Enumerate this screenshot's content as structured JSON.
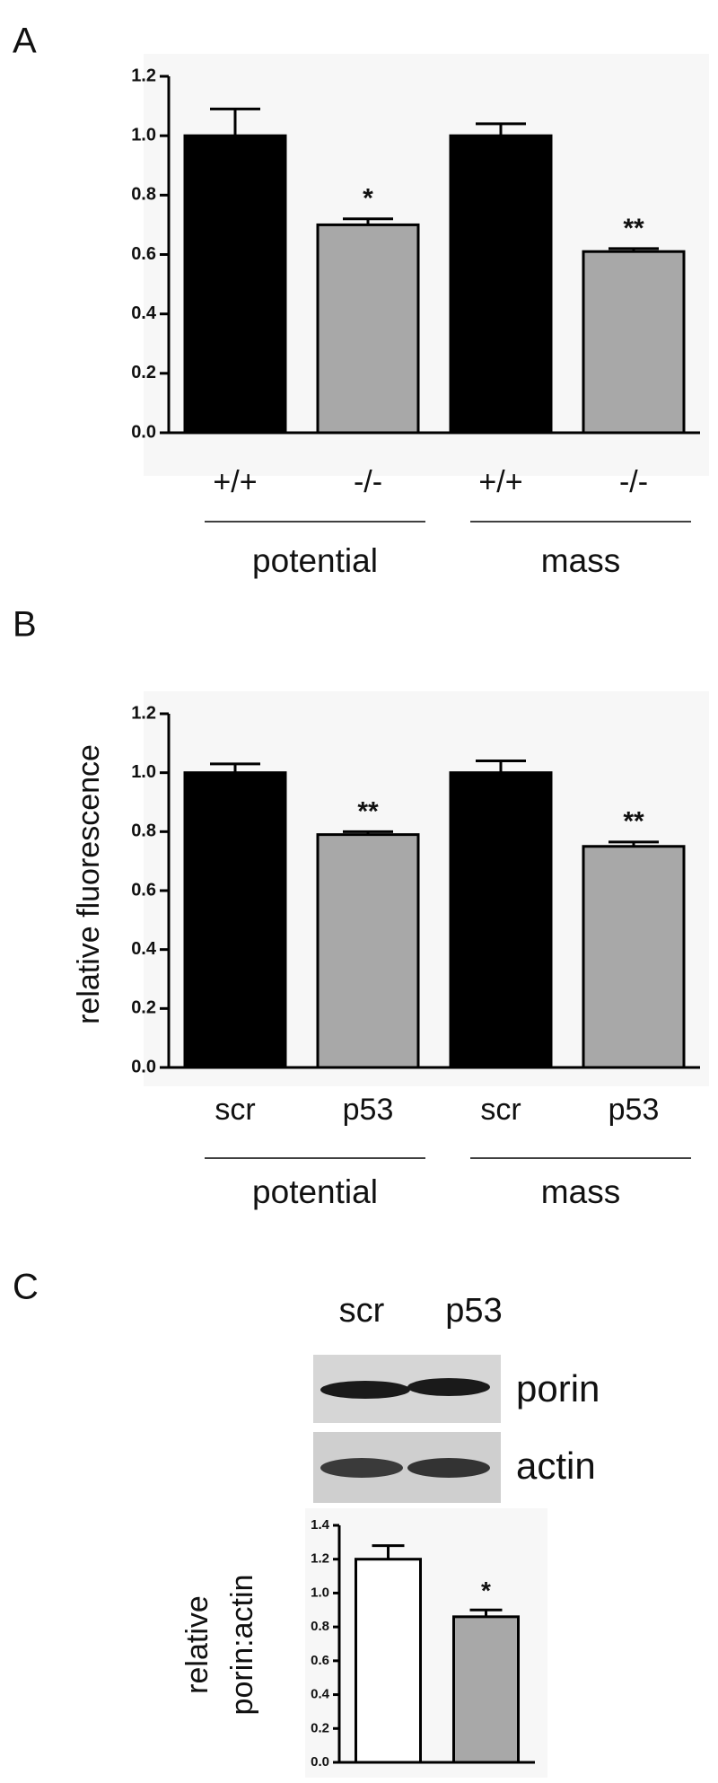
{
  "panel_labels": [
    "A",
    "B",
    "C"
  ],
  "blot": {
    "lanes": [
      "scr",
      "p53"
    ],
    "rows": [
      "porin",
      "actin"
    ]
  },
  "chart_data": [
    {
      "type": "bar",
      "categories": [
        "+/+",
        "-/-",
        "+/+",
        "-/-"
      ],
      "groups": [
        "potential",
        "mass"
      ],
      "values": [
        1.0,
        0.7,
        1.0,
        0.61
      ],
      "errors": [
        0.09,
        0.02,
        0.04,
        0.01
      ],
      "colors": [
        "#000000",
        "#a8a8a8",
        "#000000",
        "#a8a8a8"
      ],
      "annotations": [
        null,
        "*",
        null,
        "**"
      ],
      "ylim": [
        0,
        1.2
      ],
      "yticks": [
        {
          "value": 0,
          "label": "0.0"
        },
        0.2,
        0.4,
        0.6,
        0.8,
        {
          "value": 1,
          "label": "1.0"
        },
        1.2
      ]
    },
    {
      "type": "bar",
      "ylabel": "relative fluorescence",
      "categories": [
        "scr",
        "p53",
        "scr",
        "p53"
      ],
      "groups": [
        "potential",
        "mass"
      ],
      "values": [
        1.0,
        0.79,
        1.0,
        0.75
      ],
      "errors": [
        0.03,
        0.01,
        0.04,
        0.015
      ],
      "colors": [
        "#000000",
        "#a8a8a8",
        "#000000",
        "#a8a8a8"
      ],
      "annotations": [
        null,
        "**",
        null,
        "**"
      ],
      "ylim": [
        0,
        1.2
      ],
      "yticks": [
        {
          "value": 0,
          "label": "0.0"
        },
        0.2,
        0.4,
        0.6,
        0.8,
        {
          "value": 1,
          "label": "1.0"
        },
        1.2
      ]
    },
    {
      "type": "bar",
      "ylabel": [
        "relative",
        "porin:actin"
      ],
      "categories": [
        null,
        null
      ],
      "values": [
        1.2,
        0.86
      ],
      "errors": [
        0.08,
        0.04
      ],
      "colors": [
        "#ffffff",
        "#a8a8a8"
      ],
      "annotations": [
        null,
        "*"
      ],
      "ylim": [
        0,
        1.4
      ],
      "yticks": [
        {
          "value": 0,
          "label": "0.0"
        },
        0.2,
        0.4,
        0.6,
        0.8,
        {
          "value": 1,
          "label": "1.0"
        },
        1.2,
        1.4
      ]
    }
  ]
}
